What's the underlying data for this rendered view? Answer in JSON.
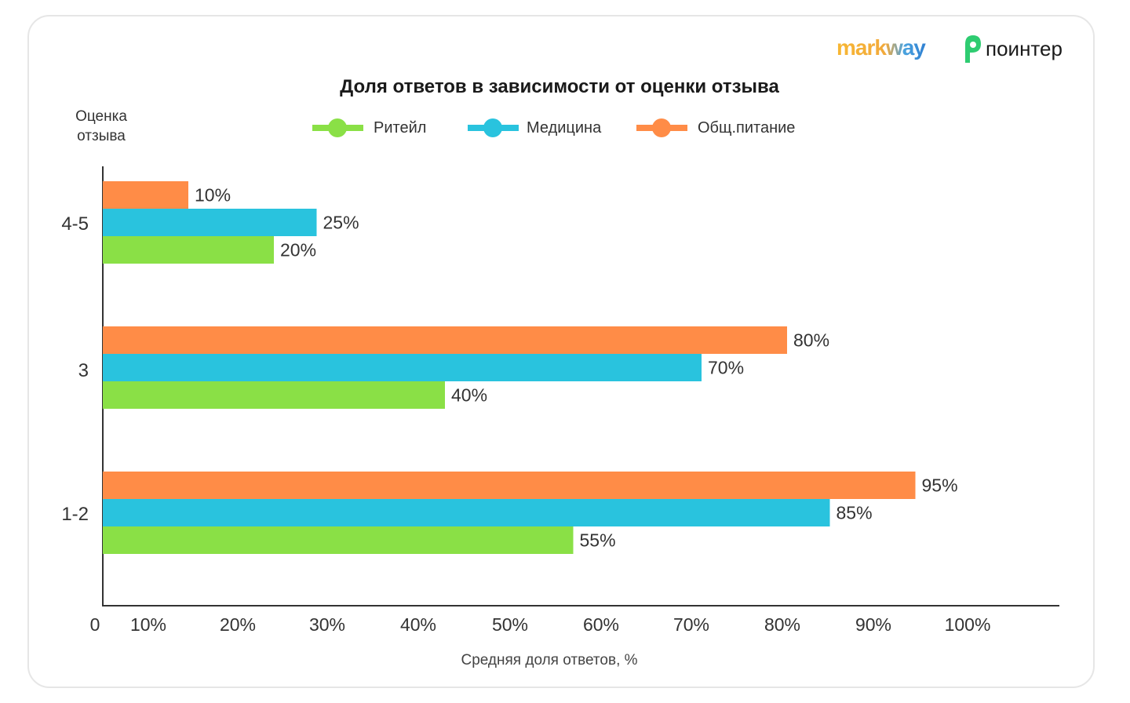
{
  "logos": {
    "markway": "markway",
    "pointer": "поинтер"
  },
  "chart_data": {
    "type": "bar",
    "orientation": "horizontal",
    "title": "Доля ответов в зависимости от оценки отзыва",
    "ylabel": "Оценка отзыва",
    "ylabel_lines": [
      "Оценка",
      "отзыва"
    ],
    "xlabel": "Средняя доля ответов, %",
    "categories": [
      "4-5",
      "3",
      "1-2"
    ],
    "series": [
      {
        "name": "Общ.питание",
        "color": "#ff8c47",
        "values": [
          10,
          80,
          95
        ],
        "labels": [
          "10%",
          "80%",
          "95%"
        ]
      },
      {
        "name": "Медицина",
        "color": "#29c3de",
        "values": [
          25,
          70,
          85
        ],
        "labels": [
          "25%",
          "70%",
          "85%"
        ]
      },
      {
        "name": "Ритейл",
        "color": "#8ae046",
        "values": [
          20,
          40,
          55
        ],
        "labels": [
          "20%",
          "40%",
          "55%"
        ]
      }
    ],
    "legend_order": [
      "Ритейл",
      "Медицина",
      "Общ.питание"
    ],
    "legend_position": "top",
    "xlim": [
      0,
      100
    ],
    "xticks": [
      "0",
      "10%",
      "20%",
      "30%",
      "40%",
      "50%",
      "60%",
      "70%",
      "80%",
      "90%",
      "100%"
    ],
    "grid": false
  }
}
